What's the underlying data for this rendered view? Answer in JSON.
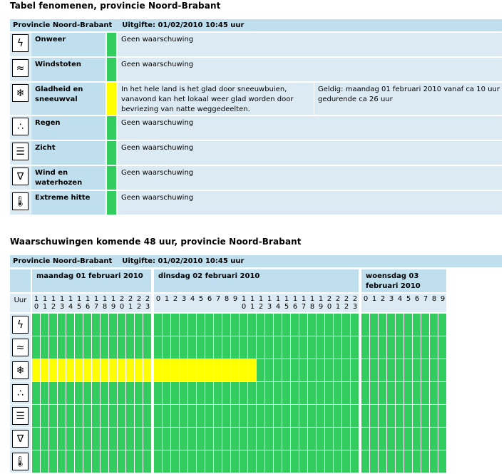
{
  "table1": {
    "title": "Tabel fenomenen, provincie Noord-Brabant",
    "header": "Provincie Noord-Brabant    Uitgifte: 01/02/2010 10:45 uur",
    "rows": [
      {
        "name": "Onweer",
        "icon": "lightning-icon",
        "status": "green",
        "text": "Geen waarschuwing"
      },
      {
        "name": "Windstoten",
        "icon": "windsock-icon",
        "status": "green",
        "text": "Geen waarschuwing"
      },
      {
        "name": "Gladheid en sneeuwval",
        "icon": "snowflake-icon",
        "status": "yellow",
        "text": "In het hele land is het glad door sneeuwbuien, vanavond kan het lokaal weer glad worden door bevriezing van natte weggedeelten.",
        "valid": "Geldig: maandag 01 februari 2010 vanaf ca 10 uur gedurende ca 26 uur"
      },
      {
        "name": "Regen",
        "icon": "rain-icon",
        "status": "green",
        "text": "Geen waarschuwing"
      },
      {
        "name": "Zicht",
        "icon": "fog-icon",
        "status": "green",
        "text": "Geen waarschuwing"
      },
      {
        "name": "Wind en waterhozen",
        "icon": "tornado-icon",
        "status": "green",
        "text": "Geen waarschuwing"
      },
      {
        "name": "Extreme hitte",
        "icon": "thermometer-icon",
        "status": "green",
        "text": "Geen waarschuwing"
      }
    ]
  },
  "table2": {
    "title": "Waarschuwingen komende 48 uur, provincie Noord-Brabant",
    "header": "Provincie Noord-Brabant    Uitgifte: 01/02/2010 10:45 uur",
    "hour_label": "Uur",
    "days": [
      {
        "label": "maandag 01 februari 2010",
        "hours": [
          "10",
          "11",
          "12",
          "13",
          "14",
          "15",
          "16",
          "17",
          "18",
          "19",
          "20",
          "21",
          "22",
          "23"
        ]
      },
      {
        "label": "dinsdag 02 februari 2010",
        "hours": [
          "0",
          "1",
          "2",
          "3",
          "4",
          "5",
          "6",
          "7",
          "8",
          "9",
          "10",
          "11",
          "12",
          "13",
          "14",
          "15",
          "16",
          "17",
          "18",
          "19",
          "20",
          "21",
          "22",
          "23"
        ]
      },
      {
        "label": "woensdag 03 februari 2010",
        "hours": [
          "0",
          "1",
          "2",
          "3",
          "4",
          "5",
          "6",
          "7",
          "8",
          "9"
        ]
      }
    ],
    "rows": [
      {
        "icon": "lightning-icon",
        "yellow_hours": {
          "day0": 0,
          "day1": 0
        }
      },
      {
        "icon": "windsock-icon",
        "yellow_hours": {
          "day0": 0,
          "day1": 0
        }
      },
      {
        "icon": "snowflake-icon",
        "yellow_hours": {
          "day0": 14,
          "day1": 12
        }
      },
      {
        "icon": "rain-icon",
        "yellow_hours": {
          "day0": 0,
          "day1": 0
        }
      },
      {
        "icon": "fog-icon",
        "yellow_hours": {
          "day0": 0,
          "day1": 0
        }
      },
      {
        "icon": "tornado-icon",
        "yellow_hours": {
          "day0": 0,
          "day1": 0
        }
      },
      {
        "icon": "thermometer-icon",
        "yellow_hours": {
          "day0": 0,
          "day1": 0
        }
      }
    ]
  },
  "colors": {
    "green": "#33cc5e",
    "yellow": "#ffff00",
    "header_bg": "#bfdfee",
    "cell_bg": "#dcebf3"
  },
  "icon_glyphs": {
    "lightning-icon": "ϟ",
    "windsock-icon": "≈",
    "snowflake-icon": "❄",
    "rain-icon": "∴",
    "fog-icon": "☰",
    "tornado-icon": "∇",
    "thermometer-icon": "🌡"
  }
}
